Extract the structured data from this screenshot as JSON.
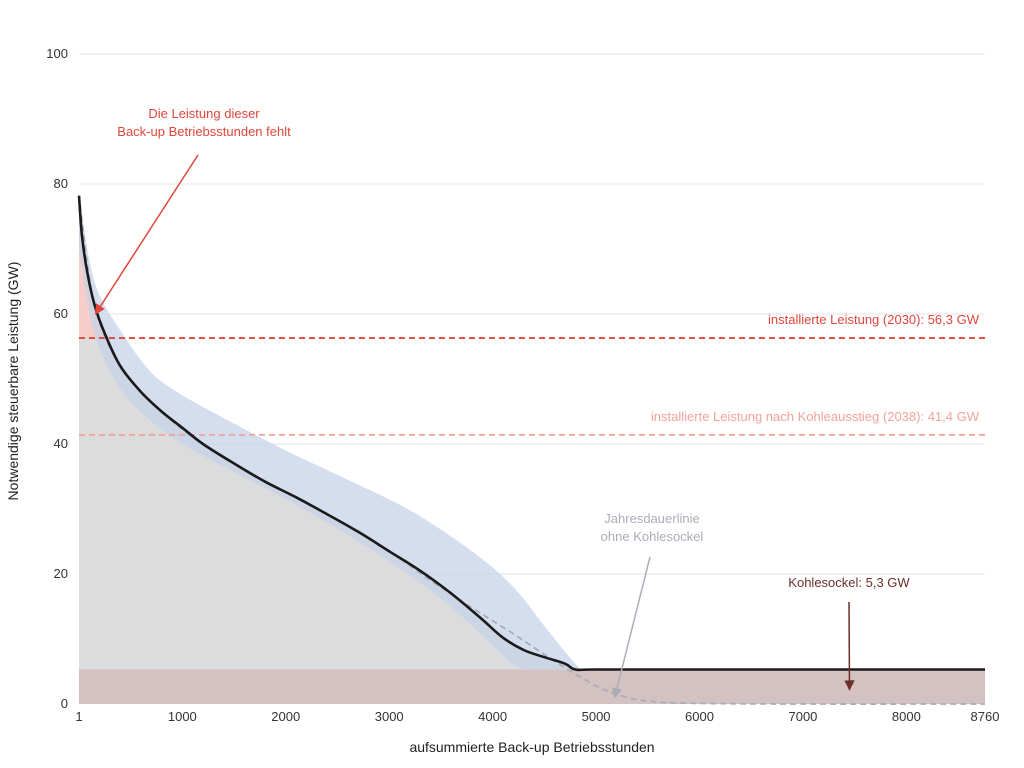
{
  "chart_data": {
    "type": "area",
    "xlabel": "aufsummierte Back-up Betriebsstunden",
    "ylabel": "Notwendige steuerbare Leistung (GW)",
    "xlim": [
      1,
      8760
    ],
    "ylim": [
      0,
      100
    ],
    "x_ticks": [
      {
        "value": 1,
        "label": "1"
      },
      {
        "value": 1000,
        "label": "1000"
      },
      {
        "value": 2000,
        "label": "2000"
      },
      {
        "value": 3000,
        "label": "3000"
      },
      {
        "value": 4000,
        "label": "4000"
      },
      {
        "value": 5000,
        "label": "5000"
      },
      {
        "value": 6000,
        "label": "6000"
      },
      {
        "value": 7000,
        "label": "7000"
      },
      {
        "value": 8000,
        "label": "8000"
      },
      {
        "value": 8760,
        "label": "8760"
      }
    ],
    "y_ticks": [
      {
        "value": 0,
        "label": "0"
      },
      {
        "value": 20,
        "label": "20"
      },
      {
        "value": 40,
        "label": "40"
      },
      {
        "value": 60,
        "label": "60"
      },
      {
        "value": 80,
        "label": "80"
      },
      {
        "value": 100,
        "label": "100"
      }
    ],
    "grid": "horizontal",
    "series": [
      {
        "role": "main_curve",
        "color": "#1a1a1a",
        "points": [
          [
            1,
            78.2
          ],
          [
            30,
            72
          ],
          [
            80,
            66.5
          ],
          [
            150,
            61.5
          ],
          [
            250,
            57
          ],
          [
            400,
            52
          ],
          [
            600,
            48
          ],
          [
            800,
            45
          ],
          [
            1000,
            42.5
          ],
          [
            1200,
            40
          ],
          [
            1500,
            37
          ],
          [
            1800,
            34.2
          ],
          [
            2100,
            31.8
          ],
          [
            2400,
            29.2
          ],
          [
            2700,
            26.5
          ],
          [
            3000,
            23.5
          ],
          [
            3300,
            20.5
          ],
          [
            3600,
            17
          ],
          [
            3900,
            13
          ],
          [
            4100,
            10.2
          ],
          [
            4300,
            8.3
          ],
          [
            4500,
            7.2
          ],
          [
            4700,
            6.2
          ],
          [
            4800,
            5.3
          ],
          [
            5000,
            5.3
          ],
          [
            6000,
            5.3
          ],
          [
            7000,
            5.3
          ],
          [
            8000,
            5.3
          ],
          [
            8760,
            5.3
          ]
        ]
      },
      {
        "role": "without_coal_base",
        "color": "#a9adb7",
        "points": [
          [
            1,
            78.2
          ],
          [
            150,
            61.5
          ],
          [
            400,
            52
          ],
          [
            800,
            45
          ],
          [
            1200,
            40
          ],
          [
            1800,
            34.2
          ],
          [
            2400,
            29.2
          ],
          [
            3000,
            23.5
          ],
          [
            3400,
            19
          ],
          [
            3800,
            14.8
          ],
          [
            4200,
            10.8
          ],
          [
            4600,
            6.6
          ],
          [
            5000,
            2.8
          ],
          [
            5300,
            1
          ],
          [
            5600,
            0.3
          ],
          [
            6000,
            0.1
          ],
          [
            7000,
            0
          ],
          [
            8760,
            0
          ]
        ]
      },
      {
        "role": "uncertainty_band",
        "color": "#c7d3ea",
        "upper": [
          [
            1,
            78.2
          ],
          [
            150,
            65
          ],
          [
            400,
            57.5
          ],
          [
            700,
            51
          ],
          [
            1000,
            47.5
          ],
          [
            1400,
            44
          ],
          [
            2000,
            39
          ],
          [
            2600,
            34.5
          ],
          [
            3200,
            29.8
          ],
          [
            3800,
            23.5
          ],
          [
            4200,
            18
          ],
          [
            4500,
            12
          ],
          [
            4700,
            8
          ],
          [
            4850,
            5.3
          ]
        ],
        "lower": [
          [
            1,
            70
          ],
          [
            150,
            57
          ],
          [
            400,
            48.5
          ],
          [
            700,
            43.5
          ],
          [
            1000,
            40
          ],
          [
            1400,
            36.5
          ],
          [
            2000,
            31.5
          ],
          [
            2600,
            26
          ],
          [
            3200,
            19.8
          ],
          [
            3700,
            13.5
          ],
          [
            4000,
            9
          ],
          [
            4200,
            6
          ],
          [
            4350,
            5.3
          ]
        ]
      }
    ],
    "reference_lines": [
      {
        "label": "installierte Leistung (2030): 56,3 GW",
        "value": 56.3,
        "color": "#e0463a"
      },
      {
        "label": "installierte Leistung nach Kohleausstieg (2038): 41,4 GW",
        "value": 41.4,
        "color": "#f0a39a"
      }
    ],
    "coal_base": {
      "value": 5.3,
      "color": "#d4c2c2"
    },
    "covered_fill_color": "#dcdcdc",
    "deficit_fill_color": "#f6cdc8",
    "annotations": {
      "deficit": {
        "lines": [
          "Die Leistung dieser",
          "Back-up Betriebsstunden fehlt"
        ],
        "color": "#e0463a",
        "points_to": [
          160,
          60
        ]
      },
      "without_coal": {
        "lines": [
          "Jahresdauerlinie",
          "ohne Kohlesockel"
        ],
        "color": "#a9adb7",
        "points_to": [
          5180,
          1
        ]
      },
      "coal_base": {
        "lines": [
          "Kohlesockel: 5,3 GW"
        ],
        "color": "#6e2f2a",
        "points_to": [
          7450,
          2.2
        ]
      }
    }
  }
}
